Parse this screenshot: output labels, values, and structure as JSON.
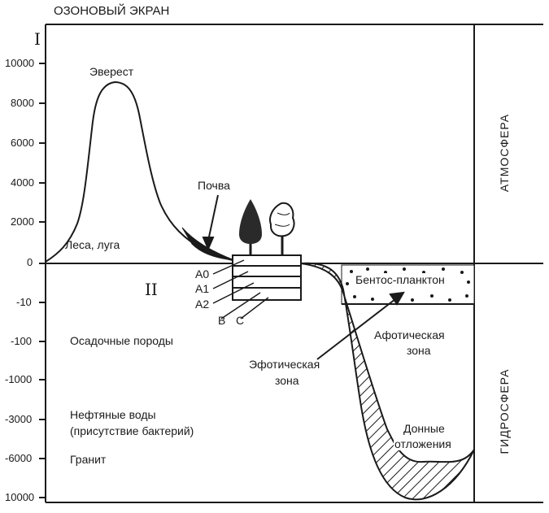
{
  "header": {
    "ozone_label": "ОЗОНОВЫЙ ЭКРАН",
    "roman_one": "I",
    "roman_two": "II"
  },
  "axis": {
    "ticks": [
      "10000",
      "8000",
      "6000",
      "4000",
      "2000",
      "0",
      "-10",
      "-100",
      "-1000",
      "-3000",
      "-6000",
      "10000"
    ]
  },
  "labels": {
    "everest": "Эверест",
    "forests": "Леса, луга",
    "soil": "Почва",
    "a0": "А0",
    "a1": "А1",
    "a2": "А2",
    "b": "В",
    "c": "С",
    "benthos": "Бентос-планктон",
    "aphotic_line1": "Афотическая",
    "aphotic_line2": "зона",
    "euphotic_line1": "Эфотическая",
    "euphotic_line2": "зона",
    "bottom_line1": "Донные",
    "bottom_line2": "отложения",
    "sedimentary": "Осадочные породы",
    "oil_line1": "Нефтяные воды",
    "oil_line2": "(присутствие бактерий)",
    "granite": "Гранит"
  },
  "side": {
    "atmosphere": "АТМОСФЕРА",
    "hydrosphere": "ГИДРОСФЕРА"
  },
  "colors": {
    "ink": "#1a1a1a",
    "paper": "#ffffff"
  }
}
